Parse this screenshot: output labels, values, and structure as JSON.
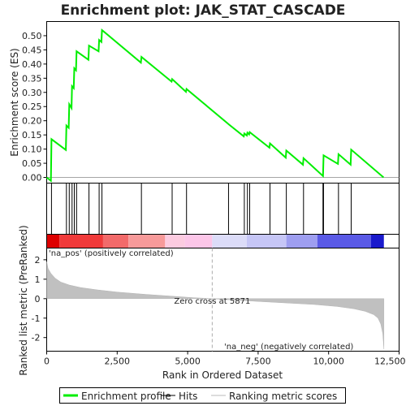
{
  "chart_data": {
    "type": "line",
    "title": "Enrichment plot: JAK_STAT_CASCADE",
    "n_genes": 12000,
    "es_panel": {
      "ylabel": "Enrichment score (ES)",
      "ylim": [
        -0.02,
        0.55
      ],
      "yticks": [
        0.0,
        0.05,
        0.1,
        0.15,
        0.2,
        0.25,
        0.3,
        0.35,
        0.4,
        0.45,
        0.5
      ],
      "ytick_labels": [
        "0.00",
        "0.05",
        "0.10",
        "0.15",
        "0.20",
        "0.25",
        "0.30",
        "0.35",
        "0.40",
        "0.45",
        "0.50"
      ],
      "series": [
        {
          "name": "Enrichment profile",
          "color": "#00ee00",
          "x": [
            0,
            150,
            170,
            680,
            700,
            780,
            800,
            880,
            900,
            960,
            980,
            1040,
            1060,
            1480,
            1500,
            1840,
            1860,
            1940,
            1960,
            3340,
            3360,
            4430,
            4450,
            4940,
            4960,
            6430,
            6450,
            6990,
            7010,
            7100,
            7120,
            7180,
            7200,
            7900,
            7920,
            8480,
            8500,
            9090,
            9110,
            9800,
            9820,
            10330,
            10350,
            10780,
            10800,
            11950
          ],
          "y": [
            0.0,
            -0.012,
            0.135,
            0.097,
            0.183,
            0.175,
            0.258,
            0.245,
            0.322,
            0.315,
            0.385,
            0.378,
            0.445,
            0.415,
            0.465,
            0.445,
            0.485,
            0.478,
            0.52,
            0.405,
            0.425,
            0.338,
            0.347,
            0.302,
            0.312,
            0.19,
            0.188,
            0.145,
            0.155,
            0.148,
            0.158,
            0.152,
            0.16,
            0.105,
            0.12,
            0.07,
            0.095,
            0.045,
            0.068,
            0.005,
            0.078,
            0.048,
            0.082,
            0.045,
            0.098,
            0.0
          ]
        }
      ]
    },
    "hits": [
      170,
      700,
      800,
      900,
      980,
      1060,
      1500,
      1860,
      1960,
      3360,
      4450,
      4960,
      6450,
      7010,
      7120,
      7200,
      7920,
      8500,
      9110,
      9800,
      9820,
      10350,
      10800
    ],
    "ranked_panel": {
      "ylabel": "Ranked list metric (PreRanked)",
      "xlabel": "Rank in Ordered Dataset",
      "ylim": [
        -2.7,
        2.6
      ],
      "yticks": [
        -2,
        -1,
        0,
        1,
        2
      ],
      "ytick_labels": [
        "-2",
        "-1",
        "0",
        "1",
        "2"
      ],
      "xlim": [
        0,
        12500
      ],
      "xticks": [
        0,
        2500,
        5000,
        7500,
        10000,
        12500
      ],
      "xtick_labels": [
        "0",
        "2,500",
        "5,000",
        "7,500",
        "10,000",
        "12,500"
      ],
      "metric_x": [
        0,
        50,
        150,
        300,
        500,
        800,
        1200,
        1800,
        2500,
        3500,
        4500,
        5200,
        5871,
        6500,
        7500,
        8500,
        9500,
        10300,
        10900,
        11300,
        11600,
        11750,
        11850,
        11920,
        11960
      ],
      "metric_y": [
        1.9,
        1.55,
        1.3,
        1.05,
        0.85,
        0.7,
        0.57,
        0.45,
        0.34,
        0.22,
        0.12,
        0.05,
        0.0,
        -0.06,
        -0.14,
        -0.22,
        -0.3,
        -0.4,
        -0.52,
        -0.65,
        -0.82,
        -1.0,
        -1.3,
        -1.8,
        -2.6
      ],
      "zero_cross": 5871,
      "zero_cross_label": "Zero cross at 5871",
      "pos_label": "'na_pos' (positively correlated)",
      "neg_label": "'na_neg' (negatively correlated)",
      "pos_label_color": "#dd0000",
      "neg_label_color": "#0000cc"
    },
    "color_bar": [
      {
        "from": 0,
        "to": 450,
        "color": "#dd0000"
      },
      {
        "from": 450,
        "to": 2000,
        "color": "#f03a3a"
      },
      {
        "from": 2000,
        "to": 2900,
        "color": "#f26a6a"
      },
      {
        "from": 2900,
        "to": 4200,
        "color": "#f79a9a"
      },
      {
        "from": 4200,
        "to": 4900,
        "color": "#fccbe0"
      },
      {
        "from": 4900,
        "to": 5871,
        "color": "#fcc6e8"
      },
      {
        "from": 5871,
        "to": 7100,
        "color": "#dcdcf8"
      },
      {
        "from": 7100,
        "to": 8500,
        "color": "#c6c6f6"
      },
      {
        "from": 8500,
        "to": 9600,
        "color": "#9e9ef0"
      },
      {
        "from": 9600,
        "to": 11500,
        "color": "#5a5ae6"
      },
      {
        "from": 11500,
        "to": 11960,
        "color": "#1a1acc"
      }
    ],
    "legend": {
      "position": "bottom",
      "items": [
        {
          "label": "Enrichment profile",
          "color": "#00ee00",
          "kind": "thick-line"
        },
        {
          "label": "Hits",
          "color": "#000000",
          "kind": "line"
        },
        {
          "label": "Ranking metric scores",
          "color": "#bbbbbb",
          "kind": "line"
        }
      ]
    }
  }
}
